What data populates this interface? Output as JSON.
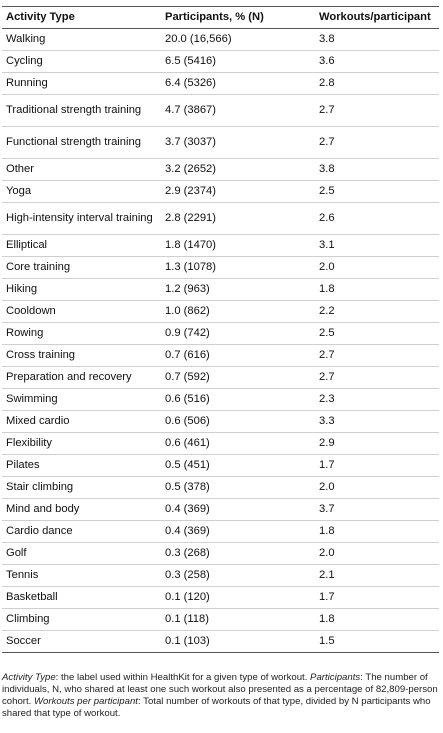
{
  "table": {
    "headers": [
      "Activity Type",
      "Participants, % (N)",
      "Workouts/participant"
    ],
    "rows": [
      {
        "activity": "Walking",
        "participants": "20.0 (16,566)",
        "workouts": "3.8",
        "lines": 1
      },
      {
        "activity": "Cycling",
        "participants": "6.5 (5416)",
        "workouts": "3.6",
        "lines": 1
      },
      {
        "activity": "Running",
        "participants": "6.4 (5326)",
        "workouts": "2.8",
        "lines": 1
      },
      {
        "activity": "Traditional strength training",
        "participants": "4.7 (3867)",
        "workouts": "2.7",
        "lines": 2
      },
      {
        "activity": "Functional strength training",
        "participants": "3.7 (3037)",
        "workouts": "2.7",
        "lines": 2
      },
      {
        "activity": "Other",
        "participants": "3.2 (2652)",
        "workouts": "3.8",
        "lines": 1
      },
      {
        "activity": "Yoga",
        "participants": "2.9 (2374)",
        "workouts": "2.5",
        "lines": 1
      },
      {
        "activity": "High-intensity interval training",
        "participants": "2.8 (2291)",
        "workouts": "2.6",
        "lines": 2
      },
      {
        "activity": "Elliptical",
        "participants": "1.8 (1470)",
        "workouts": "3.1",
        "lines": 1
      },
      {
        "activity": "Core training",
        "participants": "1.3 (1078)",
        "workouts": "2.0",
        "lines": 1
      },
      {
        "activity": "Hiking",
        "participants": "1.2 (963)",
        "workouts": "1.8",
        "lines": 1
      },
      {
        "activity": "Cooldown",
        "participants": "1.0 (862)",
        "workouts": "2.2",
        "lines": 1
      },
      {
        "activity": "Rowing",
        "participants": "0.9 (742)",
        "workouts": "2.5",
        "lines": 1
      },
      {
        "activity": "Cross training",
        "participants": "0.7 (616)",
        "workouts": "2.7",
        "lines": 1
      },
      {
        "activity": "Preparation and recovery",
        "participants": "0.7 (592)",
        "workouts": "2.7",
        "lines": 1
      },
      {
        "activity": "Swimming",
        "participants": "0.6 (516)",
        "workouts": "2.3",
        "lines": 1
      },
      {
        "activity": "Mixed cardio",
        "participants": "0.6 (506)",
        "workouts": "3.3",
        "lines": 1
      },
      {
        "activity": "Flexibility",
        "participants": "0.6 (461)",
        "workouts": "2.9",
        "lines": 1
      },
      {
        "activity": "Pilates",
        "participants": "0.5 (451)",
        "workouts": "1.7",
        "lines": 1
      },
      {
        "activity": "Stair climbing",
        "participants": "0.5 (378)",
        "workouts": "2.0",
        "lines": 1
      },
      {
        "activity": "Mind and body",
        "participants": "0.4 (369)",
        "workouts": "3.7",
        "lines": 1
      },
      {
        "activity": "Cardio dance",
        "participants": "0.4 (369)",
        "workouts": "1.8",
        "lines": 1
      },
      {
        "activity": "Golf",
        "participants": "0.3 (268)",
        "workouts": "2.0",
        "lines": 1
      },
      {
        "activity": "Tennis",
        "participants": "0.3 (258)",
        "workouts": "2.1",
        "lines": 1
      },
      {
        "activity": "Basketball",
        "participants": "0.1 (120)",
        "workouts": "1.7",
        "lines": 1
      },
      {
        "activity": "Climbing",
        "participants": "0.1 (118)",
        "workouts": "1.8",
        "lines": 1
      },
      {
        "activity": "Soccer",
        "participants": "0.1 (103)",
        "workouts": "1.5",
        "lines": 1
      }
    ]
  },
  "footnote": {
    "term1": "Activity Type",
    "text1": ": the label used within HealthKit for a given type of workout. ",
    "term2": "Participants",
    "text2": ": The number of individuals, N, who shared at least one such workout also presented as a percentage of 82,809-person cohort. ",
    "term3": "Workouts per participant",
    "text3": ": Total number of workouts of that type, divided by N participants who shared that type of workout."
  },
  "colors": {
    "rule_strong": "#555555",
    "rule_light": "#cfcfcf",
    "text": "#111111"
  }
}
